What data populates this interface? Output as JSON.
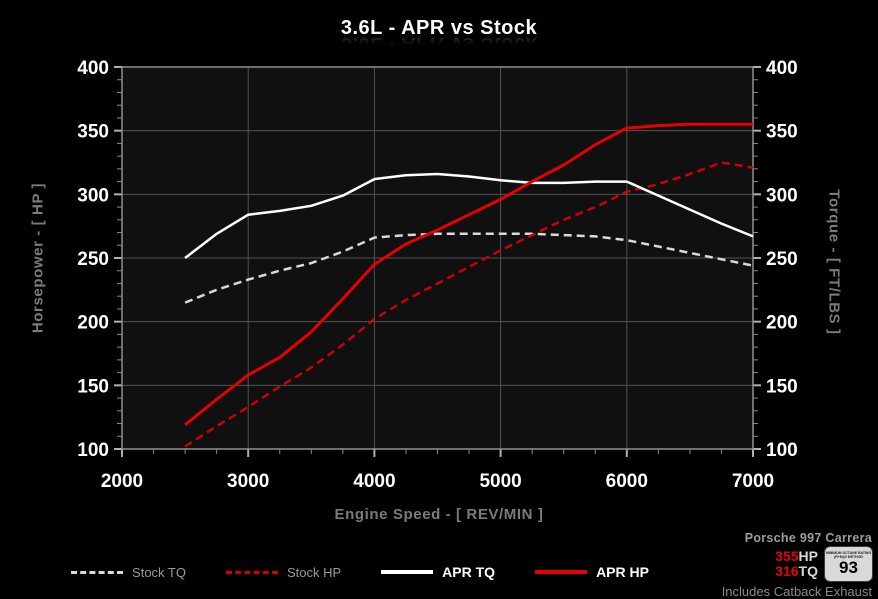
{
  "title": "3.6L - APR vs Stock",
  "colors": {
    "background": "#000000",
    "plot_background": "#101010",
    "grid": "#525252",
    "axis_border": "#909090",
    "tick_label": "#ffffff",
    "axis_title": "#7b7b7b",
    "accent_red": "#e60000",
    "stock_text": "#9a9a9a",
    "apr_text": "#ffffff"
  },
  "chart_data": {
    "type": "line",
    "title": "3.6L - APR vs Stock",
    "xlabel": "Engine Speed - [ REV/MIN ]",
    "ylabel_left": "Horsepower - [ HP ]",
    "ylabel_right": "Torque - [ FT/LBS ]",
    "x_range": [
      2000,
      7000
    ],
    "y_range": [
      100,
      400
    ],
    "x_ticks": [
      2000,
      3000,
      4000,
      5000,
      6000,
      7000
    ],
    "y_ticks": [
      100,
      150,
      200,
      250,
      300,
      350,
      400
    ],
    "x_minor_step": 250,
    "y_minor_step": 10,
    "grid": true,
    "legend_position": "bottom",
    "x": [
      2500,
      2750,
      3000,
      3250,
      3500,
      3750,
      4000,
      4250,
      4500,
      4750,
      5000,
      5250,
      5500,
      5750,
      6000,
      6250,
      6500,
      6750,
      7000
    ],
    "series": [
      {
        "name": "Stock TQ",
        "unit": "FT/LBS",
        "color": "#d9d9d9",
        "dashed": true,
        "width": 2.5,
        "values": [
          215,
          225,
          233,
          240,
          246,
          255,
          266,
          268,
          269,
          269,
          269,
          269,
          268,
          267,
          264,
          259,
          254,
          249,
          244
        ]
      },
      {
        "name": "Stock HP",
        "unit": "HP",
        "color": "#cf0000",
        "dashed": true,
        "width": 2.5,
        "values": [
          102,
          118,
          133,
          149,
          164,
          182,
          202,
          217,
          230,
          243,
          256,
          268,
          280,
          290,
          302,
          308,
          316,
          325,
          321
        ]
      },
      {
        "name": "APR TQ",
        "unit": "FT/LBS",
        "color": "#ffffff",
        "dashed": false,
        "width": 2.5,
        "values": [
          250,
          269,
          284,
          287,
          291,
          299,
          312,
          315,
          316,
          314,
          311,
          309,
          309,
          310,
          310,
          299,
          288,
          277,
          267
        ]
      },
      {
        "name": "APR HP",
        "unit": "HP",
        "color": "#e60000",
        "dashed": false,
        "width": 3,
        "values": [
          119,
          139,
          158,
          172,
          192,
          218,
          245,
          261,
          272,
          284,
          296,
          310,
          323,
          339,
          352,
          354,
          355,
          355,
          355
        ]
      }
    ]
  },
  "footer": {
    "vehicle": "Porsche 997 Carrera",
    "hp_value": "355",
    "hp_unit": "HP",
    "tq_value": "316",
    "tq_unit": "TQ",
    "octane_label_line1": "MINIMUM OCTANE RATING",
    "octane_label_line2": "(R+M)/2 METHOD",
    "octane_value": "93",
    "note": "Includes Catback Exhaust"
  }
}
